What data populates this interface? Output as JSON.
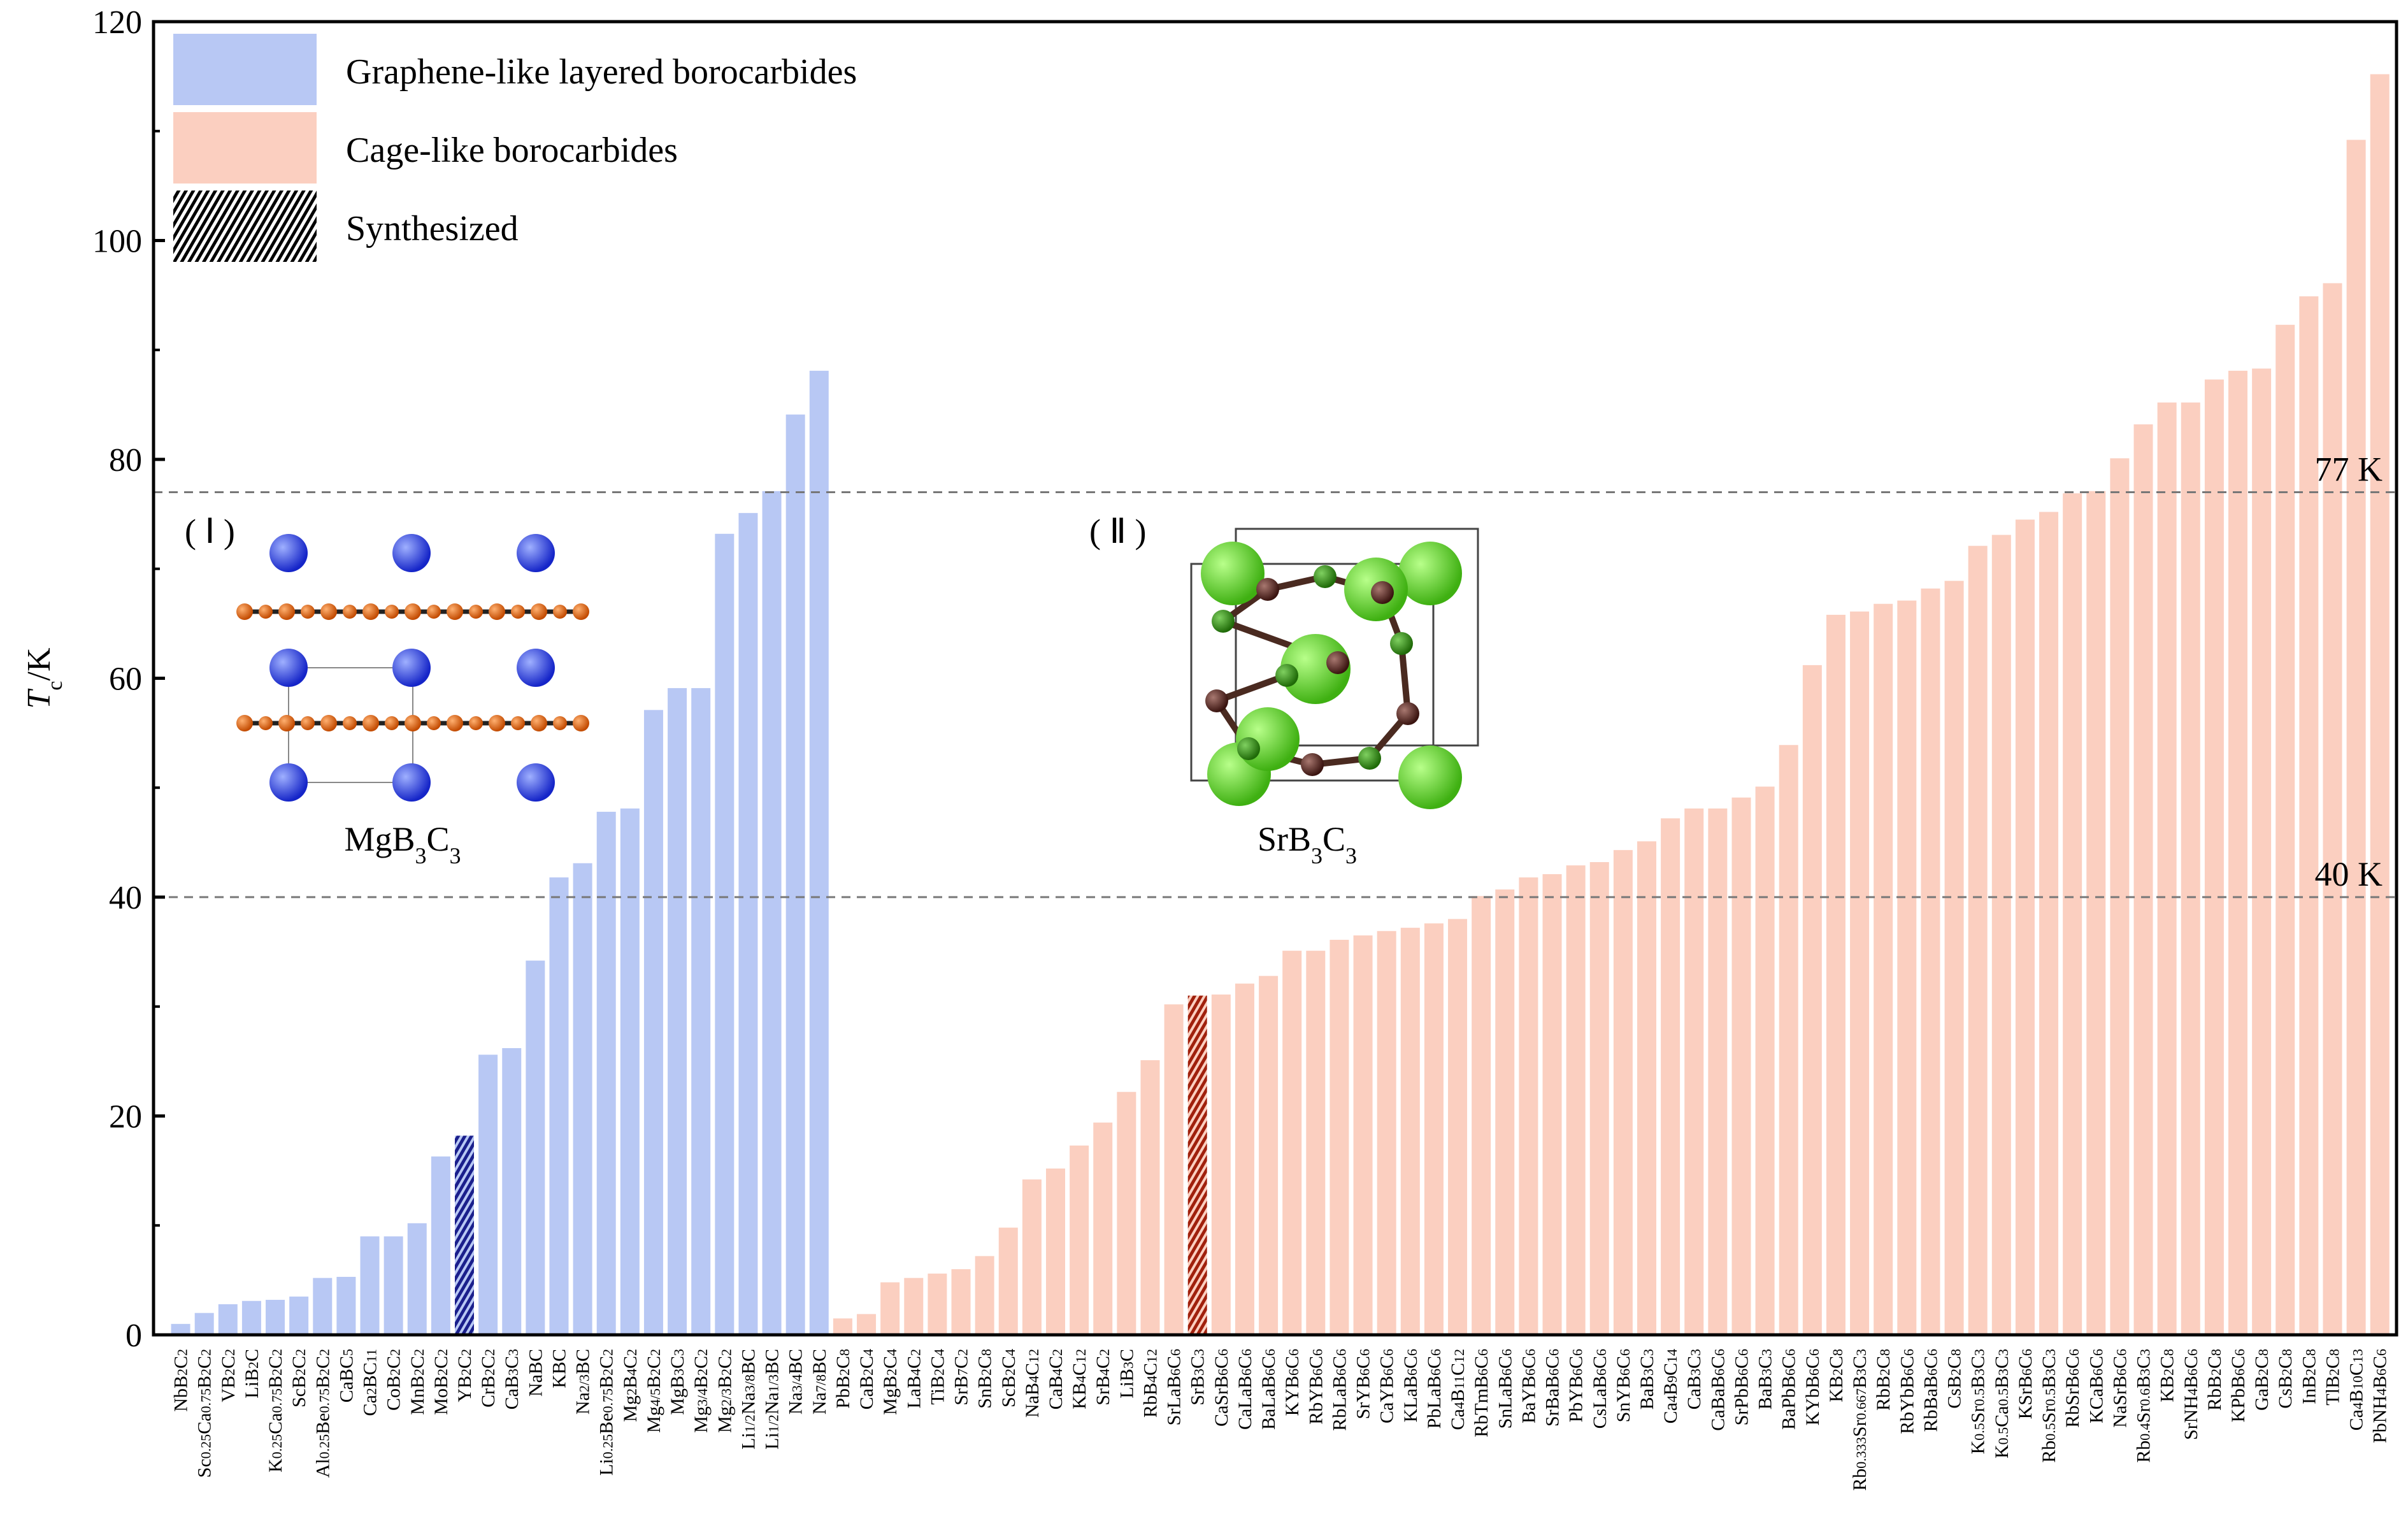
{
  "chart_data": {
    "type": "bar",
    "title": "",
    "xlabel": "",
    "ylabel": "Tc/K",
    "ylabel_main": "T",
    "ylabel_sub": "c",
    "ylabel_unit": "/K",
    "ylim": [
      0,
      120
    ],
    "yticks": [
      0,
      20,
      40,
      60,
      80,
      100,
      120
    ],
    "grid": false,
    "legend_position": "top-left",
    "colors": {
      "graphene": "#b8c8f4",
      "cage": "#fbcfc0",
      "synth_graphene": "#1a1f8c",
      "synth_cage": "#a0200c"
    },
    "legend": [
      {
        "label": "Graphene-like layered borocarbides",
        "style": "graphene"
      },
      {
        "label": "Cage-like borocarbides",
        "style": "cage"
      },
      {
        "label": "Synthesized",
        "style": "hatch"
      }
    ],
    "reference_lines": [
      {
        "value": 77,
        "label": "77 K"
      },
      {
        "value": 40,
        "label": "40 K"
      }
    ],
    "insets": [
      {
        "tag": "( Ⅰ )",
        "label": "MgB3C3"
      },
      {
        "tag": "( Ⅱ )",
        "label": "SrB3C3"
      }
    ],
    "series": [
      {
        "name": "Graphene-like layered borocarbides",
        "group": "graphene",
        "categories": [
          "NbB2C2",
          "Sc0.25Ca0.75B2C2",
          "VB2C2",
          "LiB2C",
          "K0.25Ca0.75B2C2",
          "ScB2C2",
          "Al0.25Be0.75B2C2",
          "CaBC5",
          "Ca2BC11",
          "CoB2C2",
          "MnB2C2",
          "MoB2C2",
          "YB2C2",
          "CrB2C2",
          "CaB3C3",
          "NaBC",
          "KBC",
          "Na2/3BC",
          "Li0.25Be0.75B2C2",
          "Mg2B4C2",
          "Mg4/5B2C2",
          "MgB3C3",
          "Mg3/4B2C2",
          "Mg2/3B2C2",
          "Li1/2Na3/8BC",
          "Li1/2Na1/3BC",
          "Na3/4BC",
          "Na7/8BC"
        ],
        "values": [
          1.0,
          2.0,
          2.8,
          3.1,
          3.2,
          3.5,
          5.2,
          5.3,
          9.0,
          9.0,
          10.2,
          16.3,
          18.2,
          25.6,
          26.2,
          34.2,
          41.8,
          43.1,
          47.8,
          48.1,
          57.1,
          59.1,
          59.1,
          73.2,
          75.1,
          77.1,
          84.1,
          88.1
        ],
        "synthesized": [
          "YB2C2"
        ]
      },
      {
        "name": "Cage-like borocarbides",
        "group": "cage",
        "categories": [
          "PbB2C8",
          "CaB2C4",
          "MgB2C4",
          "LaB4C2",
          "TiB2C4",
          "SrB7C2",
          "SnB2C8",
          "ScB2C4",
          "NaB4C12",
          "CaB4C2",
          "KB4C12",
          "SrB4C2",
          "LiB3C",
          "RbB4C12",
          "SrLaB6C6",
          "SrB3C3",
          "CaSrB6C6",
          "CaLaB6C6",
          "BaLaB6C6",
          "KYB6C6",
          "RbYB6C6",
          "RbLaB6C6",
          "SrYB6C6",
          "CaYB6C6",
          "KLaB6C6",
          "PbLaB6C6",
          "Ca4B11C12",
          "RbTmB6C6",
          "SnLaB6C6",
          "BaYB6C6",
          "SrBaB6C6",
          "PbYB6C6",
          "CsLaB6C6",
          "SnYB6C6",
          "BaB3C3",
          "Ca4B9C14",
          "CaB3C3",
          "CaBaB6C6",
          "SrPbB6C6",
          "BaB3C3",
          "BaPbB6C6",
          "KYbB6C6",
          "KB2C8",
          "Rb0.333Sr0.667B3C3",
          "RbB2C8",
          "RbYbB6C6",
          "RbBaB6C6",
          "CsB2C8",
          "K0.5Sr0.5B3C3",
          "K0.5Ca0.5B3C3",
          "KSrB6C6",
          "Rb0.5Sr0.5B3C3",
          "RbSrB6C6",
          "KCaB6C6",
          "NaSrB6C6",
          "Rb0.4Sr0.6B3C3",
          "KB2C8",
          "SrNH4B6C6",
          "RbB2C8",
          "KPbB6C6",
          "GaB2C8",
          "CsB2C8",
          "InB2C8",
          "TlB2C8",
          "Ca4B10C13",
          "PbNH4B6C6"
        ],
        "values": [
          1.5,
          1.9,
          4.8,
          5.2,
          5.6,
          6.0,
          7.2,
          9.8,
          14.2,
          15.2,
          17.3,
          19.4,
          22.2,
          25.1,
          30.2,
          31.0,
          31.1,
          32.1,
          32.8,
          35.1,
          35.1,
          36.1,
          36.5,
          36.9,
          37.2,
          37.6,
          38.0,
          40.1,
          40.7,
          41.8,
          42.1,
          42.9,
          43.2,
          44.3,
          45.1,
          47.2,
          48.1,
          48.1,
          49.1,
          50.1,
          53.9,
          61.2,
          65.8,
          66.1,
          66.8,
          67.1,
          68.2,
          68.9,
          72.1,
          73.1,
          74.5,
          75.2,
          76.9,
          77.1,
          80.1,
          83.2,
          85.2,
          85.2,
          87.3,
          88.1,
          88.3,
          92.3,
          94.9,
          96.1,
          109.2,
          115.2
        ],
        "synthesized_index": [
          15
        ]
      }
    ]
  }
}
